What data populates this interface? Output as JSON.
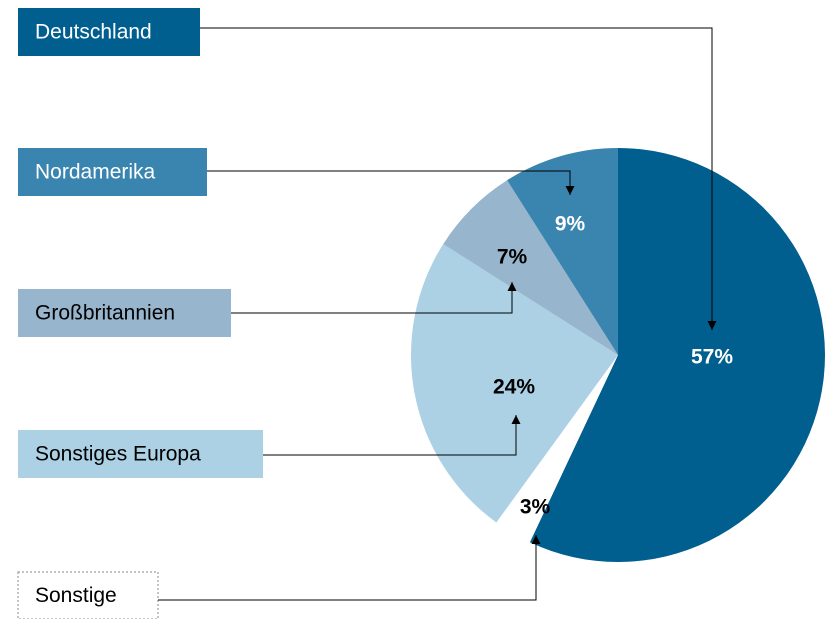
{
  "chart_data": {
    "type": "pie",
    "categories": [
      "Deutschland",
      "Sonstige",
      "Sonstiges Europa",
      "Großbritannien",
      "Nordamerika"
    ],
    "values": [
      57,
      3,
      24,
      7,
      9
    ],
    "value_labels": [
      "57%",
      "3%",
      "24%",
      "7%",
      "9%"
    ],
    "colors": [
      "#005f8f",
      "#ffffff",
      "#acd0e4",
      "#97b5cc",
      "#3a85b0"
    ]
  }
}
